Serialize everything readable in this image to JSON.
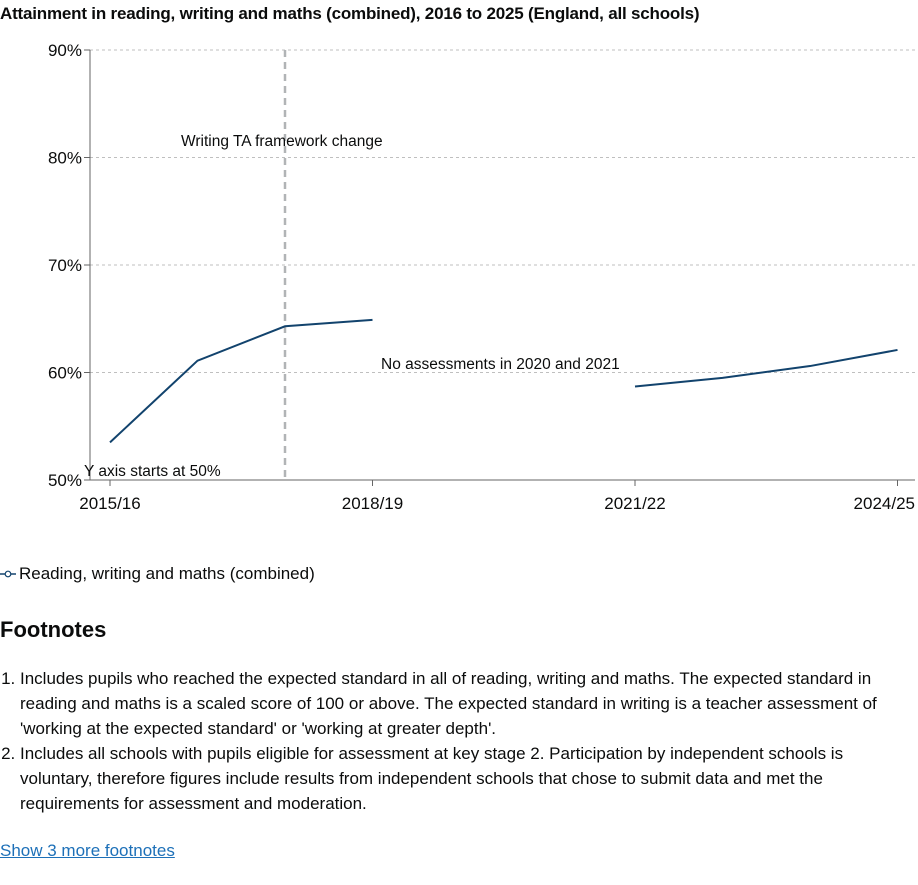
{
  "chart_data": {
    "type": "line",
    "title": "Attainment in reading, writing and maths (combined), 2016 to 2025 (England, all schools)",
    "categories": [
      "2015/16",
      "2016/17",
      "2017/18",
      "2018/19",
      "2019/20",
      "2020/21",
      "2021/22",
      "2022/23",
      "2023/24",
      "2024/25"
    ],
    "x_tick_labels": [
      "2015/16",
      "2018/19",
      "2021/22",
      "2024/25"
    ],
    "y_tick_labels": [
      "50%",
      "60%",
      "70%",
      "80%",
      "90%"
    ],
    "ylim": [
      50,
      90
    ],
    "grid": true,
    "series": [
      {
        "name": "Reading, writing and maths (combined)",
        "color": "#12436d",
        "values": [
          53.5,
          61.1,
          64.3,
          64.9,
          null,
          null,
          58.7,
          59.5,
          60.6,
          62.1
        ]
      }
    ],
    "annotations": {
      "framework_line_category": "2017/18",
      "framework_label": "Writing TA framework change",
      "gap_label": "No assessments in 2020 and 2021",
      "y_axis_note": "Y axis starts at 50%"
    },
    "legend_position": "bottom-left"
  },
  "footnotes": {
    "heading": "Footnotes",
    "items": [
      "Includes pupils who reached the expected standard in all of reading, writing and maths. The expected standard in reading and maths is a scaled score of 100 or above. The expected standard in writing is a teacher assessment of 'working at the expected standard' or 'working at greater depth'.",
      "Includes all schools with pupils eligible for assessment at key stage 2. Participation by independent schools is voluntary, therefore figures include results from independent schools that chose to submit data and met the requirements for assessment and moderation."
    ],
    "show_more": "Show 3 more footnotes"
  }
}
